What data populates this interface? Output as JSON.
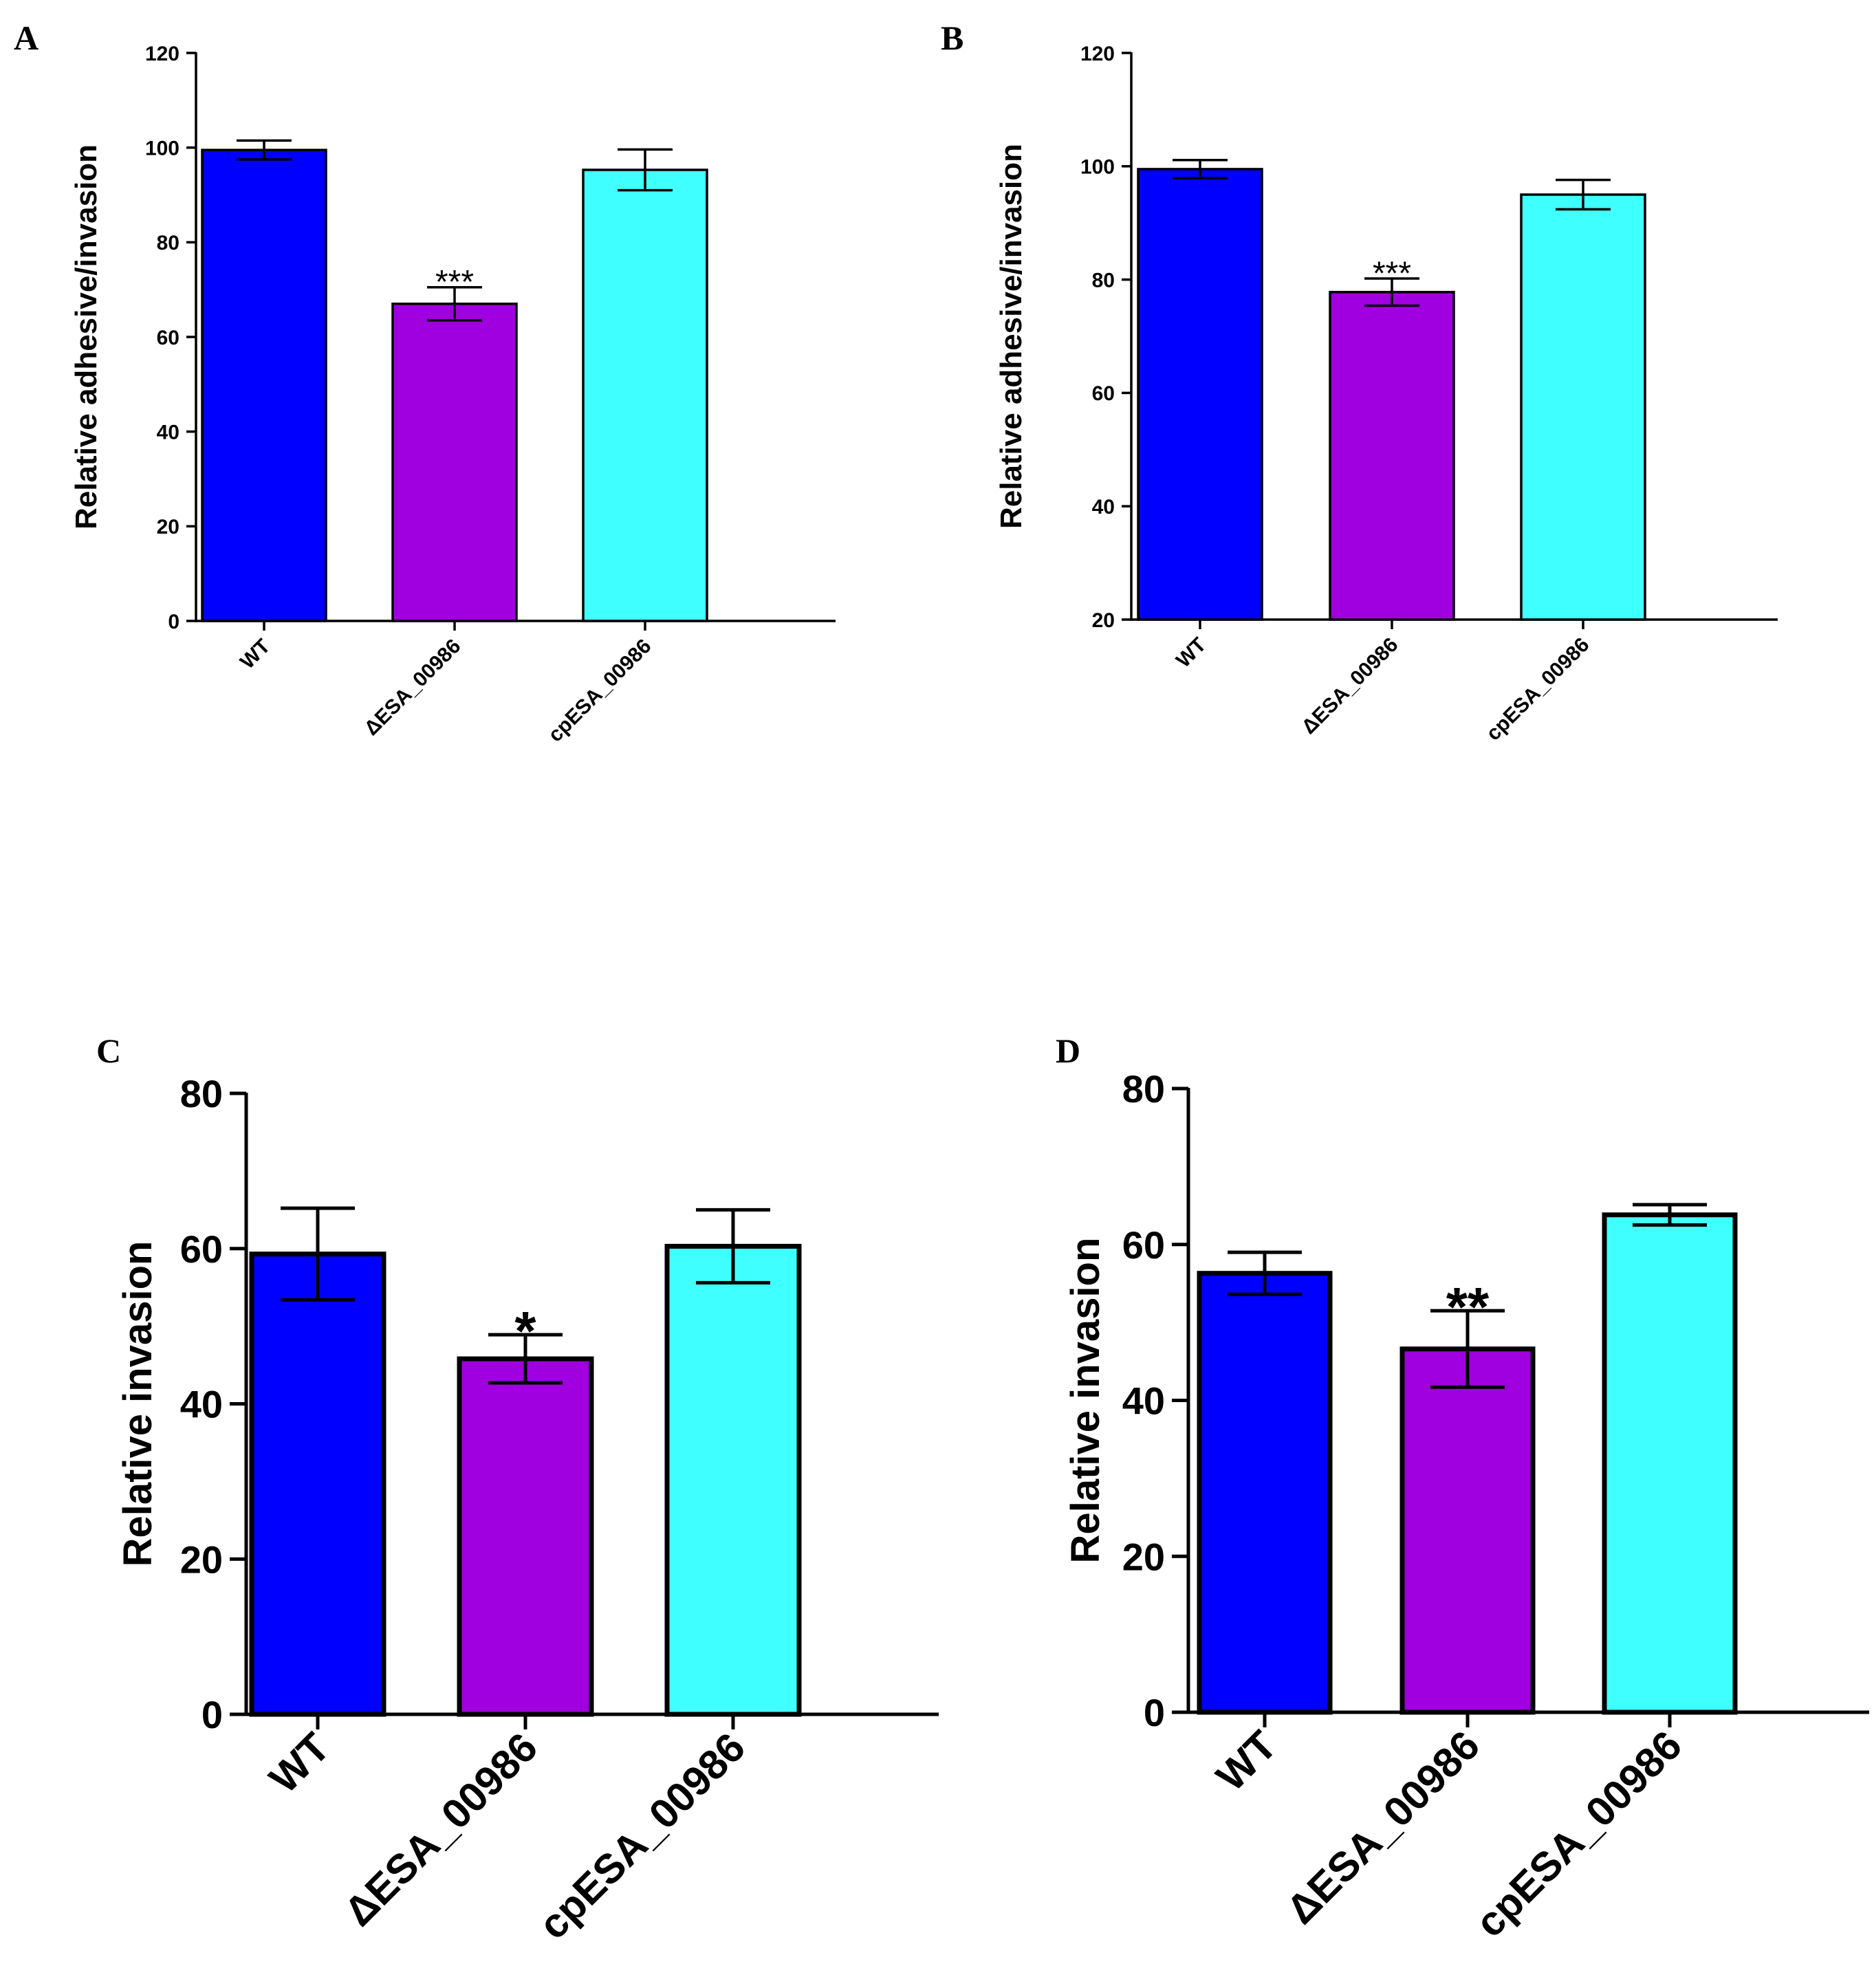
{
  "colors": {
    "wt": "#0000FF",
    "mutant": "#A000E0",
    "complement": "#40FFFF",
    "axis": "#000000",
    "sig_light": "#444444"
  },
  "chart_data": [
    {
      "panel": "A",
      "type": "bar",
      "categories": [
        "WT",
        "ΔESA_00986",
        "cpESA_00986"
      ],
      "values": [
        99.5,
        67,
        95.3
      ],
      "errors": [
        2,
        3.5,
        4.3
      ],
      "significance": [
        "",
        "***",
        ""
      ],
      "ylabel": "Relative adhesive/invasion",
      "ylim": [
        0,
        120
      ],
      "yticks": [
        "0",
        "20",
        "40",
        "60",
        "80",
        "100",
        "120"
      ]
    },
    {
      "panel": "B",
      "type": "bar",
      "categories": [
        "WT",
        "ΔESA_00986",
        "cpESA_00986"
      ],
      "values": [
        99.5,
        77.8,
        95
      ],
      "errors": [
        1.6,
        2.4,
        2.6
      ],
      "significance": [
        "",
        "***",
        ""
      ],
      "ylabel": "Relative adhesive/invasion",
      "ylim": [
        20,
        120
      ],
      "yticks": [
        "20",
        "40",
        "60",
        "80",
        "100",
        "120"
      ]
    },
    {
      "panel": "C",
      "type": "bar",
      "categories": [
        "WT",
        "ΔESA_00986",
        "cpESA_00986"
      ],
      "values": [
        59.3,
        45.8,
        60.3
      ],
      "errors": [
        5.9,
        3.1,
        4.7
      ],
      "significance": [
        "",
        "*",
        ""
      ],
      "ylabel": "Relative invasion",
      "ylim": [
        0,
        80
      ],
      "yticks": [
        "0",
        "20",
        "40",
        "60",
        "80"
      ]
    },
    {
      "panel": "D",
      "type": "bar",
      "categories": [
        "WT",
        "ΔESA_00986",
        "cpESA_00986"
      ],
      "values": [
        56.3,
        46.6,
        63.8
      ],
      "errors": [
        2.7,
        4.9,
        1.3
      ],
      "significance": [
        "",
        "**",
        ""
      ],
      "ylabel": "Relative invasion",
      "ylim": [
        0,
        80
      ],
      "yticks": [
        "0",
        "20",
        "40",
        "60",
        "80"
      ]
    }
  ]
}
